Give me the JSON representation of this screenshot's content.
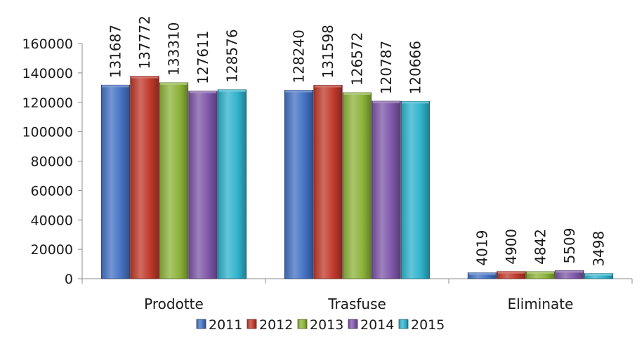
{
  "chart_data": {
    "type": "bar",
    "title": "",
    "xlabel": "",
    "ylabel": "",
    "ylim": [
      0,
      160000
    ],
    "yticks": [
      0,
      20000,
      40000,
      60000,
      80000,
      100000,
      120000,
      140000,
      160000
    ],
    "grid": false,
    "legend_position": "bottom",
    "categories": [
      "Prodotte",
      "Trasfuse",
      "Eliminate"
    ],
    "series": [
      {
        "name": "2011",
        "color": "#4472C4",
        "values": [
          131687,
          128240,
          4019
        ]
      },
      {
        "name": "2012",
        "color": "#C0392B",
        "values": [
          137772,
          131598,
          4900
        ]
      },
      {
        "name": "2013",
        "color": "#8DB33A",
        "values": [
          133310,
          126572,
          4842
        ]
      },
      {
        "name": "2014",
        "color": "#7E57A8",
        "values": [
          127611,
          120787,
          5509
        ]
      },
      {
        "name": "2015",
        "color": "#2FB3CC",
        "values": [
          128576,
          120666,
          3498
        ]
      }
    ]
  }
}
